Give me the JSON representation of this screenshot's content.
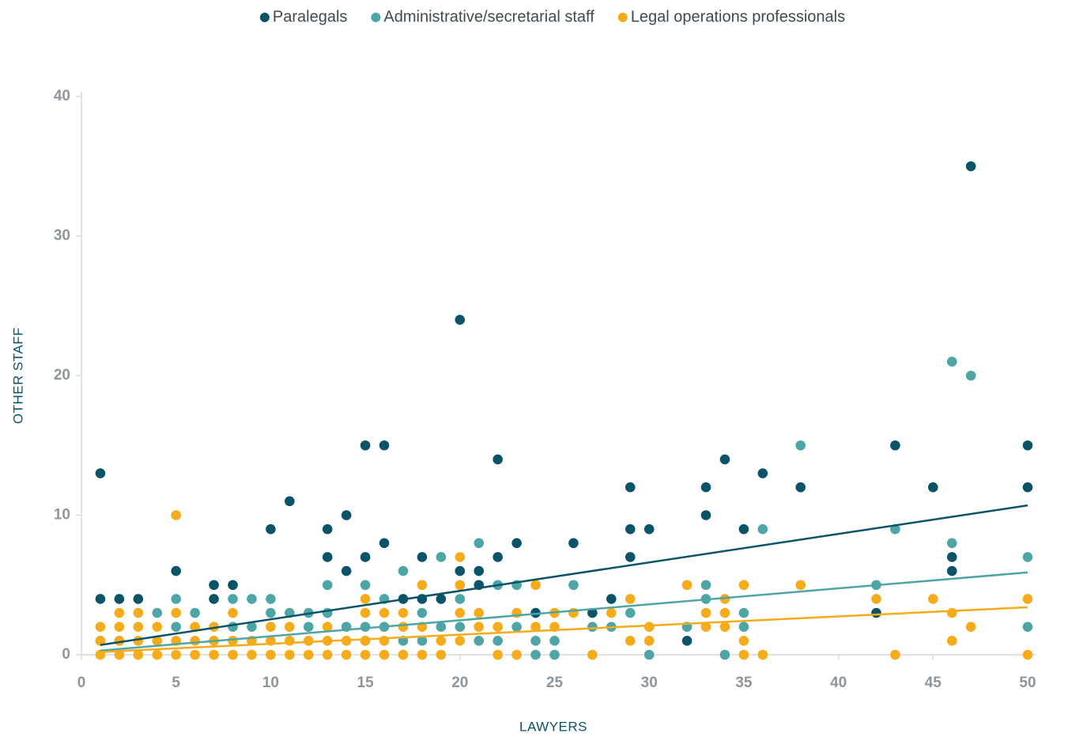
{
  "chart_data": {
    "type": "scatter",
    "x_label": "LAWYERS",
    "y_label": "OTHER STAFF",
    "xlim": [
      0,
      50
    ],
    "ylim": [
      0,
      40
    ],
    "xticks": [
      0,
      5,
      10,
      15,
      20,
      25,
      30,
      35,
      40,
      45,
      50
    ],
    "yticks": [
      0,
      10,
      20,
      30,
      40
    ],
    "trend_x": [
      1,
      50
    ],
    "series": [
      {
        "name": "Paralegals",
        "color": "#0b5369",
        "x": [
          1,
          1,
          2,
          3,
          5,
          7,
          7,
          8,
          10,
          11,
          13,
          13,
          14,
          14,
          15,
          15,
          16,
          16,
          17,
          18,
          18,
          19,
          20,
          20,
          21,
          21,
          22,
          22,
          23,
          24,
          26,
          27,
          28,
          29,
          29,
          29,
          30,
          32,
          33,
          33,
          34,
          35,
          36,
          38,
          42,
          43,
          45,
          46,
          46,
          47,
          50,
          50
        ],
        "values": [
          13,
          4,
          4,
          4,
          6,
          5,
          4,
          5,
          9,
          11,
          9,
          7,
          10,
          6,
          15,
          7,
          15,
          8,
          4,
          7,
          4,
          4,
          24,
          6,
          6,
          5,
          14,
          7,
          8,
          3,
          8,
          3,
          4,
          12,
          9,
          7,
          9,
          1,
          12,
          10,
          14,
          9,
          13,
          12,
          3,
          15,
          12,
          7,
          6,
          35,
          15,
          12
        ],
        "trend_values": [
          0.7,
          10.7
        ]
      },
      {
        "name": "Administrative/secretarial staff",
        "color": "#4ea5a5",
        "x": [
          1,
          2,
          4,
          5,
          5,
          6,
          7,
          8,
          8,
          9,
          9,
          10,
          10,
          11,
          12,
          12,
          13,
          13,
          14,
          15,
          15,
          15,
          16,
          16,
          17,
          17,
          18,
          18,
          19,
          19,
          20,
          20,
          21,
          21,
          22,
          22,
          23,
          23,
          24,
          24,
          25,
          25,
          26,
          27,
          28,
          29,
          30,
          32,
          33,
          33,
          34,
          35,
          35,
          36,
          38,
          42,
          43,
          46,
          46,
          47,
          50,
          50
        ],
        "values": [
          1,
          1,
          3,
          4,
          2,
          3,
          1,
          4,
          2,
          4,
          2,
          4,
          3,
          3,
          3,
          2,
          5,
          3,
          2,
          5,
          2,
          1,
          4,
          2,
          6,
          1,
          3,
          1,
          7,
          2,
          4,
          2,
          8,
          1,
          5,
          1,
          5,
          2,
          1,
          0,
          1,
          0,
          5,
          2,
          2,
          3,
          0,
          2,
          5,
          4,
          0,
          3,
          2,
          9,
          15,
          5,
          9,
          21,
          8,
          20,
          7,
          2
        ],
        "trend_values": [
          0.3,
          5.9
        ]
      },
      {
        "name": "Legal operations professionals",
        "color": "#f6ab1b",
        "x": [
          1,
          1,
          1,
          2,
          2,
          2,
          2,
          3,
          3,
          3,
          3,
          4,
          4,
          4,
          5,
          5,
          5,
          5,
          6,
          6,
          6,
          7,
          7,
          7,
          8,
          8,
          8,
          9,
          9,
          10,
          10,
          10,
          11,
          11,
          11,
          12,
          12,
          13,
          13,
          13,
          14,
          14,
          15,
          15,
          15,
          15,
          16,
          16,
          16,
          17,
          17,
          17,
          18,
          18,
          18,
          19,
          19,
          20,
          20,
          20,
          20,
          21,
          21,
          22,
          22,
          23,
          23,
          24,
          24,
          25,
          25,
          26,
          27,
          28,
          29,
          29,
          30,
          30,
          32,
          33,
          33,
          34,
          34,
          34,
          35,
          35,
          35,
          36,
          38,
          42,
          43,
          45,
          46,
          46,
          47,
          50,
          50
        ],
        "values": [
          2,
          1,
          0,
          3,
          2,
          1,
          0,
          3,
          2,
          1,
          0,
          2,
          1,
          0,
          10,
          3,
          1,
          0,
          2,
          1,
          0,
          2,
          1,
          0,
          3,
          1,
          0,
          1,
          0,
          2,
          1,
          0,
          2,
          1,
          0,
          1,
          0,
          2,
          1,
          0,
          1,
          0,
          4,
          3,
          1,
          0,
          3,
          1,
          0,
          3,
          2,
          0,
          5,
          2,
          0,
          1,
          0,
          7,
          5,
          3,
          1,
          3,
          2,
          2,
          0,
          3,
          0,
          5,
          2,
          3,
          2,
          3,
          0,
          3,
          4,
          1,
          2,
          1,
          5,
          3,
          2,
          4,
          3,
          2,
          5,
          1,
          0,
          0,
          5,
          4,
          0,
          4,
          3,
          1,
          2,
          4,
          0
        ],
        "trend_values": [
          0.2,
          3.4
        ]
      }
    ]
  }
}
